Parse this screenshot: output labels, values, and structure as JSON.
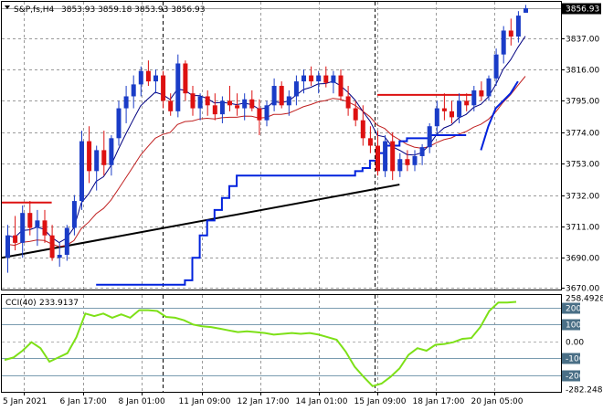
{
  "header": {
    "symbol": "S&P,fs,H4",
    "ohlc": "3853.93 3859.18 3853.93 3856.93"
  },
  "chart_data": [
    {
      "type": "candlestick",
      "title": "S&P,fs,H4",
      "y_ticks": [
        3670.0,
        3690.0,
        3711.0,
        3732.0,
        3753.0,
        3774.0,
        3795.0,
        3816.0,
        3837.0
      ],
      "ylim": [
        3670,
        3860
      ],
      "last_price": "3856.93",
      "x_ticks": [
        "5 Jan 2021",
        "6 Jan 17:00",
        "8 Jan 01:00",
        "11 Jan 09:00",
        "12 Jan 17:00",
        "14 Jan 01:00",
        "15 Jan 09:00",
        "18 Jan 17:00",
        "20 Jan 05:00"
      ],
      "grid": true,
      "candles": [
        [
          3690,
          3712,
          3680,
          3705
        ],
        [
          3705,
          3718,
          3695,
          3700
        ],
        [
          3700,
          3725,
          3690,
          3720
        ],
        [
          3720,
          3728,
          3705,
          3710
        ],
        [
          3710,
          3722,
          3698,
          3715
        ],
        [
          3715,
          3722,
          3700,
          3705
        ],
        [
          3705,
          3712,
          3688,
          3690
        ],
        [
          3690,
          3700,
          3684,
          3692
        ],
        [
          3692,
          3712,
          3688,
          3710
        ],
        [
          3710,
          3732,
          3705,
          3728
        ],
        [
          3728,
          3775,
          3722,
          3768
        ],
        [
          3768,
          3778,
          3740,
          3748
        ],
        [
          3748,
          3765,
          3735,
          3762
        ],
        [
          3762,
          3775,
          3745,
          3752
        ],
        [
          3752,
          3772,
          3745,
          3770
        ],
        [
          3770,
          3795,
          3765,
          3790
        ],
        [
          3790,
          3805,
          3780,
          3798
        ],
        [
          3798,
          3812,
          3790,
          3806
        ],
        [
          3806,
          3818,
          3798,
          3815
        ],
        [
          3815,
          3822,
          3805,
          3808
        ],
        [
          3808,
          3816,
          3800,
          3812
        ],
        [
          3812,
          3815,
          3790,
          3795
        ],
        [
          3795,
          3800,
          3785,
          3788
        ],
        [
          3788,
          3826,
          3784,
          3820
        ],
        [
          3820,
          3822,
          3795,
          3800
        ],
        [
          3800,
          3805,
          3785,
          3790
        ],
        [
          3790,
          3800,
          3782,
          3798
        ],
        [
          3798,
          3802,
          3785,
          3792
        ],
        [
          3792,
          3800,
          3782,
          3786
        ],
        [
          3786,
          3798,
          3780,
          3795
        ],
        [
          3795,
          3805,
          3788,
          3792
        ],
        [
          3792,
          3800,
          3785,
          3790
        ],
        [
          3790,
          3800,
          3782,
          3796
        ],
        [
          3796,
          3802,
          3788,
          3790
        ],
        [
          3790,
          3796,
          3772,
          3782
        ],
        [
          3782,
          3795,
          3778,
          3792
        ],
        [
          3792,
          3810,
          3788,
          3805
        ],
        [
          3805,
          3808,
          3790,
          3792
        ],
        [
          3792,
          3802,
          3785,
          3798
        ],
        [
          3798,
          3812,
          3792,
          3808
        ],
        [
          3808,
          3816,
          3800,
          3812
        ],
        [
          3812,
          3818,
          3805,
          3808
        ],
        [
          3808,
          3815,
          3800,
          3812
        ],
        [
          3812,
          3818,
          3804,
          3807
        ],
        [
          3807,
          3815,
          3800,
          3812
        ],
        [
          3812,
          3816,
          3795,
          3798
        ],
        [
          3798,
          3805,
          3785,
          3790
        ],
        [
          3790,
          3795,
          3778,
          3782
        ],
        [
          3782,
          3792,
          3765,
          3770
        ],
        [
          3770,
          3778,
          3760,
          3765
        ],
        [
          3765,
          3775,
          3745,
          3748
        ],
        [
          3748,
          3772,
          3744,
          3768
        ],
        [
          3768,
          3774,
          3742,
          3748
        ],
        [
          3748,
          3760,
          3744,
          3756
        ],
        [
          3756,
          3762,
          3748,
          3752
        ],
        [
          3752,
          3762,
          3748,
          3758
        ],
        [
          3758,
          3766,
          3752,
          3764
        ],
        [
          3764,
          3780,
          3760,
          3778
        ],
        [
          3778,
          3795,
          3772,
          3790
        ],
        [
          3790,
          3800,
          3782,
          3788
        ],
        [
          3788,
          3795,
          3780,
          3784
        ],
        [
          3784,
          3800,
          3780,
          3795
        ],
        [
          3795,
          3800,
          3788,
          3792
        ],
        [
          3792,
          3805,
          3788,
          3802
        ],
        [
          3802,
          3808,
          3795,
          3798
        ],
        [
          3798,
          3812,
          3795,
          3810
        ],
        [
          3810,
          3830,
          3805,
          3826
        ],
        [
          3826,
          3845,
          3820,
          3842
        ],
        [
          3842,
          3850,
          3832,
          3838
        ],
        [
          3838,
          3855,
          3834,
          3852
        ],
        [
          3853.93,
          3859.18,
          3853.93,
          3856.93
        ]
      ],
      "bull_color": "#1a3cc7",
      "bear_color": "#dd1111",
      "fast_ma_color": "#000080",
      "slow_ma_color": "#c02020",
      "atr_stop_color": "#0022dd",
      "trendline_color": "#000000",
      "resistance_color": "#dd1111"
    },
    {
      "type": "line",
      "title": "CCI(40) 233.9137",
      "indicator_label": "CCI(40)",
      "indicator_value": "233.9137",
      "y_ticks": [
        "258.4928",
        "200",
        "100",
        "0.00",
        "-100",
        "-200",
        "-282.248"
      ],
      "levels": [
        200,
        100,
        -100,
        -200
      ],
      "ylim": [
        -282.248,
        258.4928
      ],
      "line_color": "#7de017"
    }
  ]
}
